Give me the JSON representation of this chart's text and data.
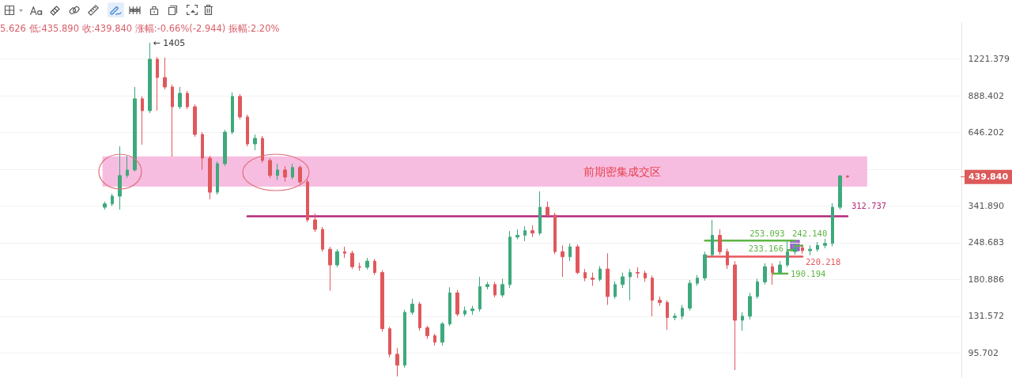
{
  "chart_data": {
    "type": "candlestick",
    "subtitle": "5.626 低:435.890 收:439.840 涨幅:-0.66%(-2.944) 振幅:2.20%",
    "categories": [
      null,
      null,
      null,
      null,
      null,
      null,
      null,
      null,
      null,
      null,
      null,
      null,
      null,
      null,
      null,
      null,
      null,
      null,
      null,
      null,
      null,
      null,
      null,
      null,
      null,
      null,
      null,
      null,
      null,
      null,
      null,
      null,
      null,
      null,
      null,
      null,
      null,
      null,
      null,
      null,
      null,
      null,
      null,
      null,
      null,
      null,
      null,
      null,
      null,
      null,
      null,
      null,
      null,
      null,
      null,
      null,
      null,
      null,
      null,
      null,
      null,
      null,
      null,
      null,
      null,
      null,
      null,
      null,
      null,
      null,
      null,
      null,
      null,
      null,
      null,
      null,
      null,
      null,
      null,
      null,
      null,
      null,
      null,
      null,
      null,
      null,
      null,
      null,
      null,
      null,
      null,
      null,
      null,
      null,
      null,
      null,
      null,
      null,
      null,
      null
    ],
    "ohlc": [
      [
        338,
        355,
        331,
        348
      ],
      [
        348,
        380,
        341,
        372
      ],
      [
        372,
        573,
        331,
        445
      ],
      [
        445,
        528,
        436,
        467
      ],
      [
        467,
        958,
        460,
        865
      ],
      [
        865,
        883,
        581,
        780
      ],
      [
        780,
        1405,
        764,
        1218
      ],
      [
        1218,
        1243,
        780,
        1040
      ],
      [
        1040,
        1235,
        939,
        958
      ],
      [
        958,
        978,
        524,
        807
      ],
      [
        807,
        958,
        791,
        907
      ],
      [
        907,
        926,
        791,
        807
      ],
      [
        807,
        824,
        622,
        635
      ],
      [
        635,
        648,
        467,
        517
      ],
      [
        517,
        528,
        362,
        385
      ],
      [
        385,
        503,
        377,
        493
      ],
      [
        493,
        661,
        483,
        648
      ],
      [
        648,
        914,
        635,
        883
      ],
      [
        883,
        901,
        724,
        739
      ],
      [
        739,
        754,
        573,
        585
      ],
      [
        585,
        635,
        554,
        614
      ],
      [
        614,
        627,
        497,
        507
      ],
      [
        507,
        517,
        436,
        445
      ],
      [
        445,
        493,
        427,
        467
      ],
      [
        467,
        483,
        421,
        439
      ],
      [
        439,
        493,
        430,
        477
      ],
      [
        477,
        486,
        412,
        421
      ],
      [
        421,
        430,
        297,
        303
      ],
      [
        303,
        320,
        273,
        279
      ],
      [
        279,
        285,
        230,
        235
      ],
      [
        235,
        240,
        164,
        205
      ],
      [
        205,
        235,
        201,
        230
      ],
      [
        230,
        240,
        218,
        227
      ],
      [
        227,
        232,
        198,
        202
      ],
      [
        202,
        209,
        195,
        201
      ],
      [
        201,
        218,
        197,
        212
      ],
      [
        212,
        216,
        188,
        192
      ],
      [
        192,
        196,
        115,
        118
      ],
      [
        118,
        120,
        92.1,
        94.6
      ],
      [
        94.6,
        100,
        78,
        86
      ],
      [
        86,
        139,
        84.2,
        136
      ],
      [
        136,
        153,
        133,
        146
      ],
      [
        146,
        149,
        116,
        119
      ],
      [
        119,
        121,
        108,
        111
      ],
      [
        111,
        113,
        102,
        105
      ],
      [
        105,
        125,
        102,
        123
      ],
      [
        123,
        169,
        121,
        161
      ],
      [
        161,
        165,
        131.5,
        134
      ],
      [
        134,
        143,
        131.5,
        138
      ],
      [
        138,
        144,
        133,
        140
      ],
      [
        140,
        185,
        137,
        170
      ],
      [
        170,
        177,
        166,
        173
      ],
      [
        173,
        177,
        155,
        158
      ],
      [
        158,
        182,
        155,
        173
      ],
      [
        173,
        275,
        168,
        261
      ],
      [
        261,
        279,
        256,
        265
      ],
      [
        265,
        287,
        252,
        276
      ],
      [
        276,
        289,
        261,
        270
      ],
      [
        270,
        388,
        265,
        338
      ],
      [
        338,
        355,
        308,
        316
      ],
      [
        316,
        322,
        225,
        230
      ],
      [
        230,
        243,
        185,
        220
      ],
      [
        220,
        247,
        212,
        240
      ],
      [
        240,
        245,
        189,
        192
      ],
      [
        192,
        198,
        178,
        183
      ],
      [
        183,
        192,
        171,
        181
      ],
      [
        181,
        203,
        178,
        198
      ],
      [
        198,
        227,
        145,
        156
      ],
      [
        156,
        178,
        153,
        173
      ],
      [
        173,
        192,
        168,
        185
      ],
      [
        185,
        198,
        151,
        192
      ],
      [
        192,
        201,
        183,
        191
      ],
      [
        191,
        195,
        177,
        183
      ],
      [
        183,
        187,
        131.5,
        151
      ],
      [
        151,
        156,
        144,
        148
      ],
      [
        148,
        151,
        117,
        130
      ],
      [
        130,
        135,
        127,
        131.5
      ],
      [
        131.5,
        145,
        128,
        141
      ],
      [
        141,
        180,
        138,
        175
      ],
      [
        175,
        188,
        171,
        183
      ],
      [
        183,
        230,
        179,
        224
      ],
      [
        224,
        303,
        220,
        265
      ],
      [
        265,
        279,
        224,
        230
      ],
      [
        230,
        236,
        198,
        205
      ],
      [
        205,
        212,
        82.5,
        127
      ],
      [
        127,
        136,
        116,
        131.5
      ],
      [
        131.5,
        161,
        128,
        156
      ],
      [
        156,
        182,
        153,
        177
      ],
      [
        177,
        208,
        173,
        202
      ],
      [
        202,
        208,
        173,
        192
      ],
      [
        192,
        212,
        189,
        205
      ],
      [
        205,
        252,
        201,
        230
      ],
      [
        230,
        247,
        224,
        238
      ],
      [
        238,
        245,
        226,
        232
      ],
      [
        232,
        243,
        223,
        235
      ],
      [
        235,
        250,
        230,
        243
      ],
      [
        243,
        257,
        237,
        247
      ],
      [
        247,
        350,
        241,
        338
      ],
      [
        338,
        448,
        331,
        443
      ],
      [
        443,
        445.626,
        435.89,
        439.84
      ]
    ],
    "series": [
      {
        "type": "line",
        "color": "#b3297b",
        "values": [
          null,
          null,
          null,
          null,
          null,
          null,
          null,
          null,
          null,
          null,
          null,
          null,
          null,
          null,
          null,
          null,
          null,
          null,
          null,
          312.737,
          312.737,
          312.737,
          312.737,
          312.737,
          312.737,
          312.737,
          312.737,
          312.737,
          312.737,
          312.737,
          312.737,
          312.737,
          312.737,
          312.737,
          312.737,
          312.737,
          312.737,
          312.737,
          312.737,
          312.737,
          312.737,
          312.737,
          312.737,
          312.737,
          312.737,
          312.737,
          312.737,
          312.737,
          312.737,
          312.737,
          312.737,
          312.737,
          312.737,
          312.737,
          312.737,
          312.737,
          312.737,
          312.737,
          312.737,
          312.737,
          312.737,
          312.737,
          312.737,
          312.737,
          312.737,
          312.737,
          312.737,
          312.737,
          312.737,
          312.737,
          312.737,
          312.737,
          312.737,
          312.737,
          312.737,
          312.737,
          312.737,
          312.737,
          312.737,
          312.737,
          312.737,
          312.737,
          312.737,
          312.737,
          312.737,
          312.737,
          312.737,
          312.737,
          312.737,
          312.737,
          312.737,
          312.737,
          312.737,
          312.737,
          312.737,
          312.737,
          312.737,
          312.737,
          312.737,
          312.737
        ],
        "value_labels": [
          null,
          null,
          null,
          null,
          null,
          null,
          null,
          null,
          null,
          null,
          null,
          null,
          null,
          null,
          null,
          null,
          null,
          null,
          null,
          null,
          null,
          null,
          null,
          null,
          null,
          null,
          null,
          null,
          null,
          null,
          null,
          null,
          null,
          null,
          null,
          null,
          null,
          null,
          null,
          null,
          null,
          null,
          null,
          null,
          null,
          null,
          null,
          null,
          null,
          null,
          null,
          null,
          null,
          null,
          null,
          null,
          null,
          null,
          null,
          null,
          null,
          null,
          null,
          null,
          null,
          null,
          null,
          null,
          null,
          null,
          null,
          null,
          null,
          null,
          null,
          null,
          null,
          null,
          null,
          null,
          null,
          null,
          null,
          null,
          null,
          null,
          null,
          null,
          null,
          null,
          null,
          null,
          null,
          null,
          null,
          null,
          null,
          null,
          null,
          "312.737"
        ]
      },
      {
        "type": "line",
        "color": "#5db544",
        "values": [
          null,
          null,
          null,
          null,
          null,
          null,
          null,
          null,
          null,
          null,
          null,
          null,
          null,
          null,
          null,
          null,
          null,
          null,
          null,
          null,
          null,
          null,
          null,
          null,
          null,
          null,
          null,
          null,
          null,
          null,
          null,
          null,
          null,
          null,
          null,
          null,
          null,
          null,
          null,
          null,
          null,
          null,
          null,
          null,
          null,
          null,
          null,
          null,
          null,
          null,
          null,
          null,
          null,
          null,
          null,
          null,
          null,
          null,
          null,
          null,
          null,
          null,
          null,
          null,
          null,
          null,
          null,
          null,
          null,
          null,
          null,
          null,
          null,
          null,
          null,
          null,
          null,
          null,
          null,
          null,
          253.093,
          253.093,
          253.093,
          253.093,
          253.093,
          253.093,
          253.093,
          253.093,
          253.093,
          253.093,
          253.093,
          253.093,
          253.093,
          null,
          null,
          null,
          null,
          null,
          null,
          null
        ],
        "value_labels": [
          null,
          null,
          null,
          null,
          null,
          null,
          null,
          null,
          null,
          null,
          null,
          null,
          null,
          null,
          null,
          null,
          null,
          null,
          null,
          null,
          null,
          null,
          null,
          null,
          null,
          null,
          null,
          null,
          null,
          null,
          null,
          null,
          null,
          null,
          null,
          null,
          null,
          null,
          null,
          null,
          null,
          null,
          null,
          null,
          null,
          null,
          null,
          null,
          null,
          null,
          null,
          null,
          null,
          null,
          null,
          null,
          null,
          null,
          null,
          null,
          null,
          null,
          null,
          null,
          null,
          null,
          null,
          null,
          null,
          null,
          null,
          null,
          null,
          null,
          null,
          null,
          null,
          null,
          null,
          null,
          null,
          null,
          null,
          null,
          null,
          null,
          null,
          null,
          null,
          null,
          null,
          null,
          "253.093",
          null,
          null,
          null,
          null,
          null,
          null,
          null
        ]
      },
      {
        "type": "line",
        "color": "#5db544",
        "values": [
          null,
          null,
          null,
          null,
          null,
          null,
          null,
          null,
          null,
          null,
          null,
          null,
          null,
          null,
          null,
          null,
          null,
          null,
          null,
          null,
          null,
          null,
          null,
          null,
          null,
          null,
          null,
          null,
          null,
          null,
          null,
          null,
          null,
          null,
          null,
          null,
          null,
          null,
          null,
          null,
          null,
          null,
          null,
          null,
          null,
          null,
          null,
          null,
          null,
          null,
          null,
          null,
          null,
          null,
          null,
          null,
          null,
          null,
          null,
          null,
          null,
          null,
          null,
          null,
          null,
          null,
          null,
          null,
          null,
          null,
          null,
          null,
          null,
          null,
          null,
          null,
          null,
          null,
          null,
          null,
          null,
          null,
          null,
          null,
          null,
          null,
          null,
          null,
          null,
          null,
          null,
          null,
          242.14,
          242.14,
          null,
          null,
          null,
          null,
          null,
          null
        ],
        "value_labels": [
          null,
          null,
          null,
          null,
          null,
          null,
          null,
          null,
          null,
          null,
          null,
          null,
          null,
          null,
          null,
          null,
          null,
          null,
          null,
          null,
          null,
          null,
          null,
          null,
          null,
          null,
          null,
          null,
          null,
          null,
          null,
          null,
          null,
          null,
          null,
          null,
          null,
          null,
          null,
          null,
          null,
          null,
          null,
          null,
          null,
          null,
          null,
          null,
          null,
          null,
          null,
          null,
          null,
          null,
          null,
          null,
          null,
          null,
          null,
          null,
          null,
          null,
          null,
          null,
          null,
          null,
          null,
          null,
          null,
          null,
          null,
          null,
          null,
          null,
          null,
          null,
          null,
          null,
          null,
          null,
          null,
          null,
          null,
          null,
          null,
          null,
          null,
          null,
          null,
          null,
          null,
          null,
          null,
          "242.140",
          null,
          null,
          null,
          null,
          null,
          null
        ]
      },
      {
        "type": "line",
        "color": "#5db544",
        "values": [
          null,
          null,
          null,
          null,
          null,
          null,
          null,
          null,
          null,
          null,
          null,
          null,
          null,
          null,
          null,
          null,
          null,
          null,
          null,
          null,
          null,
          null,
          null,
          null,
          null,
          null,
          null,
          null,
          null,
          null,
          null,
          null,
          null,
          null,
          null,
          null,
          null,
          null,
          null,
          null,
          null,
          null,
          null,
          null,
          null,
          null,
          null,
          null,
          null,
          null,
          null,
          null,
          null,
          null,
          null,
          null,
          null,
          null,
          null,
          null,
          null,
          null,
          null,
          null,
          null,
          null,
          null,
          null,
          null,
          null,
          null,
          null,
          null,
          null,
          null,
          null,
          null,
          null,
          null,
          null,
          null,
          null,
          null,
          null,
          null,
          null,
          null,
          null,
          null,
          null,
          null,
          233.166,
          233.166,
          null,
          null,
          null,
          null,
          null,
          null,
          null
        ],
        "value_labels": [
          null,
          null,
          null,
          null,
          null,
          null,
          null,
          null,
          null,
          null,
          null,
          null,
          null,
          null,
          null,
          null,
          null,
          null,
          null,
          null,
          null,
          null,
          null,
          null,
          null,
          null,
          null,
          null,
          null,
          null,
          null,
          null,
          null,
          null,
          null,
          null,
          null,
          null,
          null,
          null,
          null,
          null,
          null,
          null,
          null,
          null,
          null,
          null,
          null,
          null,
          null,
          null,
          null,
          null,
          null,
          null,
          null,
          null,
          null,
          null,
          null,
          null,
          null,
          null,
          null,
          null,
          null,
          null,
          null,
          null,
          null,
          null,
          null,
          null,
          null,
          null,
          null,
          null,
          null,
          null,
          null,
          null,
          null,
          null,
          null,
          null,
          null,
          null,
          null,
          null,
          null,
          null,
          "233.166",
          null,
          null,
          null,
          null,
          null,
          null,
          null
        ]
      },
      {
        "type": "line",
        "color": "#e8565c",
        "values": [
          null,
          null,
          null,
          null,
          null,
          null,
          null,
          null,
          null,
          null,
          null,
          null,
          null,
          null,
          null,
          null,
          null,
          null,
          null,
          null,
          null,
          null,
          null,
          null,
          null,
          null,
          null,
          null,
          null,
          null,
          null,
          null,
          null,
          null,
          null,
          null,
          null,
          null,
          null,
          null,
          null,
          null,
          null,
          null,
          null,
          null,
          null,
          null,
          null,
          null,
          null,
          null,
          null,
          null,
          null,
          null,
          null,
          null,
          null,
          null,
          null,
          null,
          null,
          null,
          null,
          null,
          null,
          null,
          null,
          null,
          null,
          null,
          null,
          null,
          null,
          null,
          null,
          null,
          null,
          null,
          220.218,
          220.218,
          220.218,
          220.218,
          220.218,
          220.218,
          220.218,
          220.218,
          220.218,
          220.218,
          220.218,
          220.218,
          220.218,
          220.218,
          null,
          null,
          null,
          null,
          null,
          null
        ],
        "value_labels": [
          null,
          null,
          null,
          null,
          null,
          null,
          null,
          null,
          null,
          null,
          null,
          null,
          null,
          null,
          null,
          null,
          null,
          null,
          null,
          null,
          null,
          null,
          null,
          null,
          null,
          null,
          null,
          null,
          null,
          null,
          null,
          null,
          null,
          null,
          null,
          null,
          null,
          null,
          null,
          null,
          null,
          null,
          null,
          null,
          null,
          null,
          null,
          null,
          null,
          null,
          null,
          null,
          null,
          null,
          null,
          null,
          null,
          null,
          null,
          null,
          null,
          null,
          null,
          null,
          null,
          null,
          null,
          null,
          null,
          null,
          null,
          null,
          null,
          null,
          null,
          null,
          null,
          null,
          null,
          null,
          null,
          null,
          null,
          null,
          null,
          null,
          null,
          null,
          null,
          null,
          null,
          null,
          null,
          "220.218",
          null,
          null,
          null,
          null,
          null,
          null
        ]
      },
      {
        "type": "line",
        "color": "#5db544",
        "values": [
          null,
          null,
          null,
          null,
          null,
          null,
          null,
          null,
          null,
          null,
          null,
          null,
          null,
          null,
          null,
          null,
          null,
          null,
          null,
          null,
          null,
          null,
          null,
          null,
          null,
          null,
          null,
          null,
          null,
          null,
          null,
          null,
          null,
          null,
          null,
          null,
          null,
          null,
          null,
          null,
          null,
          null,
          null,
          null,
          null,
          null,
          null,
          null,
          null,
          null,
          null,
          null,
          null,
          null,
          null,
          null,
          null,
          null,
          null,
          null,
          null,
          null,
          null,
          null,
          null,
          null,
          null,
          null,
          null,
          null,
          null,
          null,
          null,
          null,
          null,
          null,
          null,
          null,
          null,
          null,
          null,
          null,
          null,
          null,
          null,
          null,
          null,
          null,
          null,
          190.194,
          190.194,
          190.194,
          null,
          null,
          null,
          null,
          null,
          null,
          null,
          null
        ],
        "value_labels": [
          null,
          null,
          null,
          null,
          null,
          null,
          null,
          null,
          null,
          null,
          null,
          null,
          null,
          null,
          null,
          null,
          null,
          null,
          null,
          null,
          null,
          null,
          null,
          null,
          null,
          null,
          null,
          null,
          null,
          null,
          null,
          null,
          null,
          null,
          null,
          null,
          null,
          null,
          null,
          null,
          null,
          null,
          null,
          null,
          null,
          null,
          null,
          null,
          null,
          null,
          null,
          null,
          null,
          null,
          null,
          null,
          null,
          null,
          null,
          null,
          null,
          null,
          null,
          null,
          null,
          null,
          null,
          null,
          null,
          null,
          null,
          null,
          null,
          null,
          null,
          null,
          null,
          null,
          null,
          null,
          null,
          null,
          null,
          null,
          null,
          null,
          null,
          null,
          null,
          null,
          null,
          "190.194",
          null,
          null,
          null,
          null,
          null,
          null,
          null,
          null
        ]
      }
    ],
    "bands": [
      {
        "axis": "y",
        "from": 404,
        "to": 525,
        "label": "前期密集成交区",
        "color": "#f7bde0"
      }
    ],
    "annotations": [
      "← 1405",
      "439.840"
    ],
    "ylim": [
      77,
      1680
    ],
    "yticks": [
      95.702,
      131.572,
      180.886,
      248.683,
      {
        "value": 341.89,
        "label": "341.890"
      },
      {
        "value": 470.032,
        "label": null
      },
      646.202,
      888.402,
      1221.379
    ],
    "log": true,
    "grid": "y"
  }
}
